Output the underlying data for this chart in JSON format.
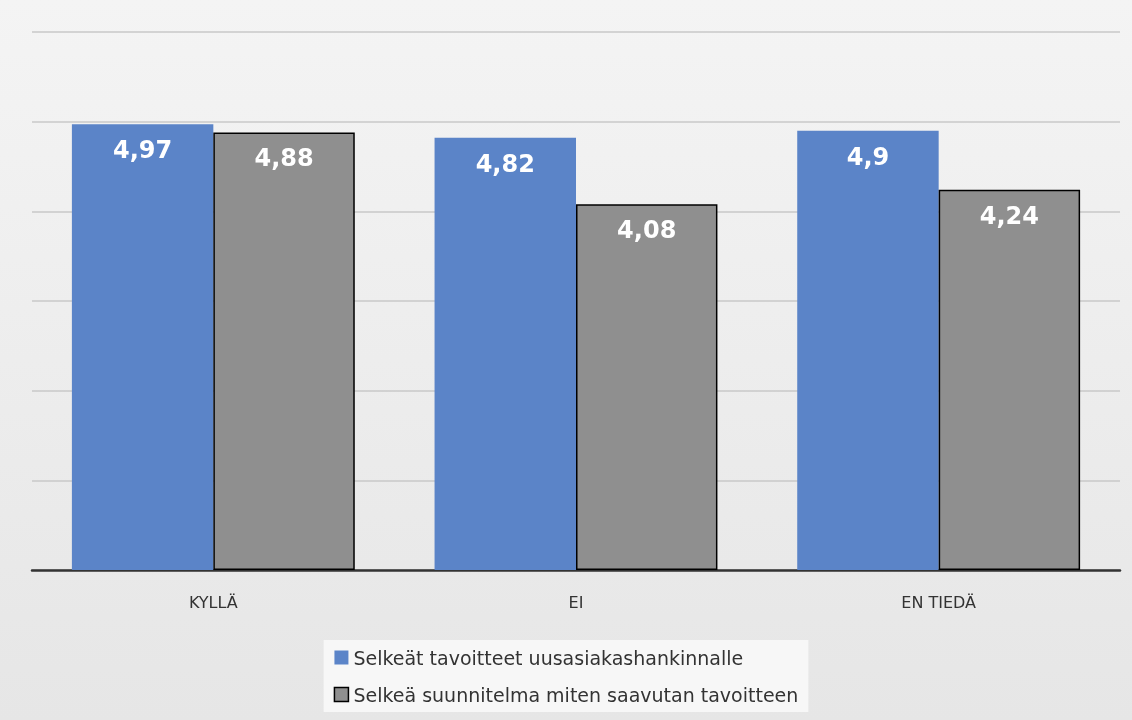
{
  "chart_data": {
    "type": "bar",
    "categories": [
      "KYLLÄ",
      "EI",
      "EN TIEDÄ"
    ],
    "series": [
      {
        "name": "Selkeät tavoitteet uusasiakashankinnalle",
        "color": "#5b84c8",
        "values": [
          4.97,
          4.82,
          4.9
        ],
        "value_labels": [
          "4,97",
          "4,82",
          "4,9"
        ]
      },
      {
        "name": "Selkeä suunnitelma miten saavutan tavoitteen",
        "color": "#8f8f8f",
        "values": [
          4.88,
          4.08,
          4.24
        ],
        "value_labels": [
          "4,88",
          "4,08",
          "4,24"
        ]
      }
    ],
    "ylim": [
      0,
      6
    ],
    "yticks": [
      {
        "value": 0,
        "label": null
      },
      {
        "value": 1,
        "label": null
      },
      {
        "value": 2,
        "label": null
      },
      {
        "value": 3,
        "label": null
      },
      {
        "value": 4,
        "label": null
      },
      {
        "value": 5,
        "label": null
      },
      {
        "value": 6,
        "label": null
      }
    ],
    "tick_labels": "x",
    "grid": "y",
    "legend": "bottom"
  }
}
